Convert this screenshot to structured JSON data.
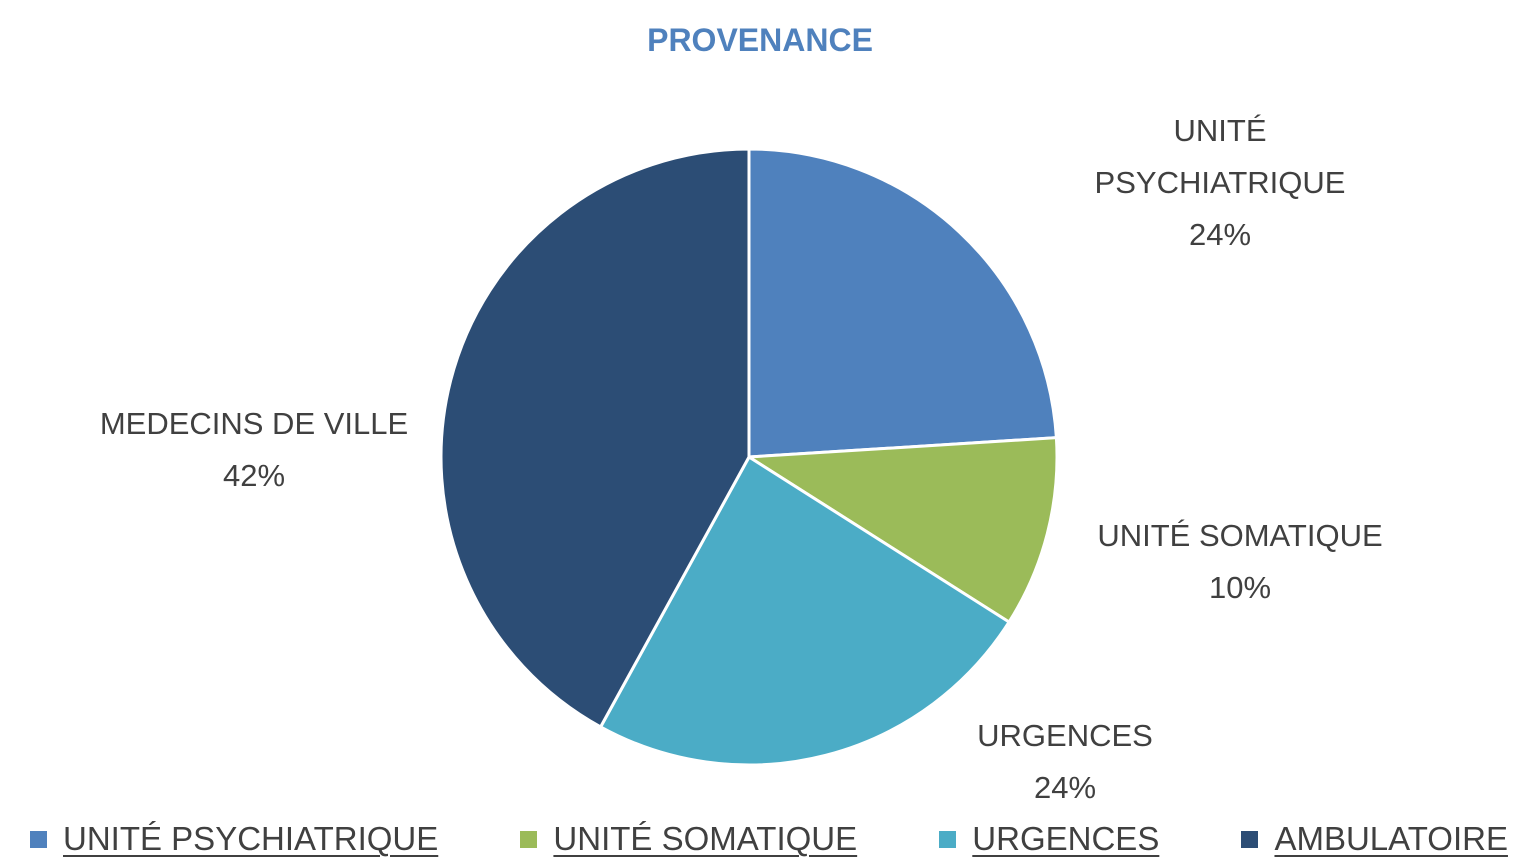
{
  "chart_data": {
    "type": "pie",
    "title": "PROVENANCE",
    "categories": [
      "UNITÉ PSYCHIATRIQUE",
      "UNITÉ SOMATIQUE",
      "URGENCES",
      "AMBULATOIRE"
    ],
    "label_names": [
      "UNITÉ PSYCHIATRIQUE",
      "UNITÉ SOMATIQUE",
      "URGENCES",
      "MEDECINS DE VILLE"
    ],
    "values": [
      24,
      10,
      24,
      42
    ],
    "value_labels": [
      "24%",
      "10%",
      "24%",
      "42%"
    ],
    "colors": [
      "#4f81bd",
      "#9bbb59",
      "#4bacc6",
      "#2c4d75"
    ],
    "legend": "bottom"
  }
}
